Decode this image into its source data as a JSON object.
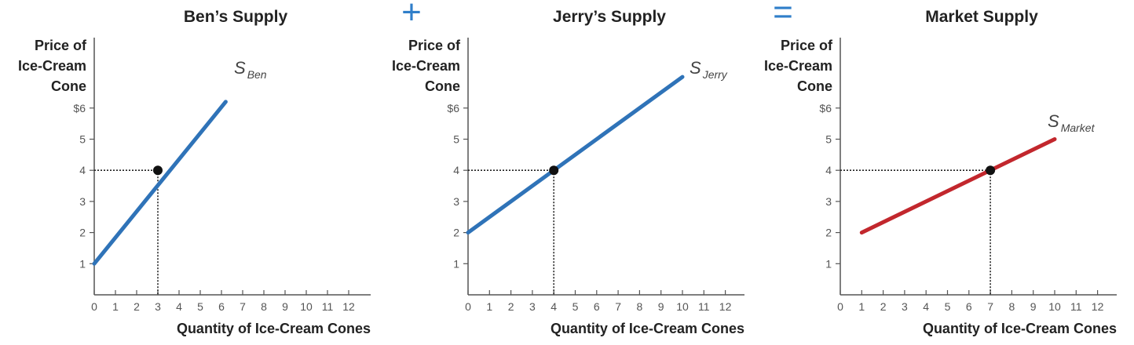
{
  "operators": {
    "plus": "+",
    "equals": "="
  },
  "chart_data": [
    {
      "type": "line",
      "title": "Ben’s Supply",
      "ylabel": [
        "Price of",
        "Ice-Cream",
        "Cone"
      ],
      "xlabel": "Quantity of Ice-Cream Cones",
      "xlim": [
        0,
        12.5
      ],
      "ylim": [
        0,
        6
      ],
      "x_ticks": [
        "0",
        "1",
        "2",
        "3",
        "4",
        "5",
        "6",
        "7",
        "8",
        "9",
        "10",
        "11",
        "12"
      ],
      "y_ticks": [
        "1",
        "2",
        "3",
        "4",
        "5",
        "$6"
      ],
      "series": [
        {
          "name": "S",
          "subscript": "Ben",
          "color": "#2f73b8",
          "points": [
            [
              0,
              1
            ],
            [
              6.2,
              6.2
            ]
          ]
        }
      ],
      "highlight": {
        "x": 3,
        "y": 4
      }
    },
    {
      "type": "line",
      "title": "Jerry’s Supply",
      "ylabel": [
        "Price of",
        "Ice-Cream",
        "Cone"
      ],
      "xlabel": "Quantity of Ice-Cream Cones",
      "xlim": [
        0,
        12.5
      ],
      "ylim": [
        0,
        6
      ],
      "x_ticks": [
        "0",
        "1",
        "2",
        "3",
        "4",
        "5",
        "6",
        "7",
        "8",
        "9",
        "10",
        "11",
        "12"
      ],
      "y_ticks": [
        "1",
        "2",
        "3",
        "4",
        "5",
        "$6"
      ],
      "series": [
        {
          "name": "S",
          "subscript": "Jerry",
          "color": "#2f73b8",
          "points": [
            [
              0,
              2
            ],
            [
              10,
              7
            ]
          ]
        }
      ],
      "highlight": {
        "x": 4,
        "y": 4
      }
    },
    {
      "type": "line",
      "title": "Market Supply",
      "ylabel": [
        "Price of",
        "Ice-Cream",
        "Cone"
      ],
      "xlabel": "Quantity of Ice-Cream Cones",
      "xlim": [
        0,
        12.5
      ],
      "ylim": [
        0,
        6
      ],
      "x_ticks": [
        "0",
        "1",
        "2",
        "3",
        "4",
        "5",
        "6",
        "7",
        "8",
        "9",
        "10",
        "11",
        "12"
      ],
      "y_ticks": [
        "1",
        "2",
        "3",
        "4",
        "5",
        "$6"
      ],
      "series": [
        {
          "name": "S",
          "subscript": "Market",
          "color": "#c2272d",
          "points": [
            [
              1,
              2
            ],
            [
              10,
              5
            ]
          ]
        }
      ],
      "highlight": {
        "x": 7,
        "y": 4
      }
    }
  ]
}
